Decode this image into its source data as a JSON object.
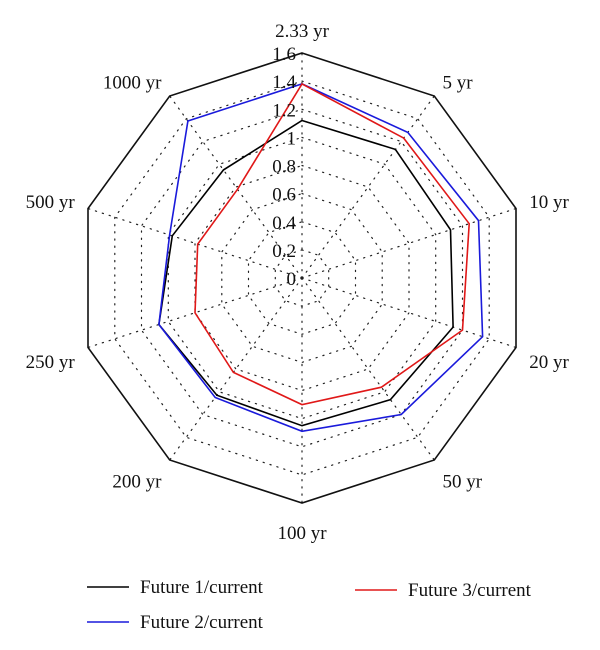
{
  "chart_data": {
    "type": "radar",
    "categories": [
      "2.33 yr",
      "5 yr",
      "10 yr",
      "20 yr",
      "50 yr",
      "100 yr",
      "200 yr",
      "250 yr",
      "500 yr",
      "1000 yr"
    ],
    "rlim": [
      0,
      1.6
    ],
    "ticks": [
      "0",
      "0.2",
      "0.4",
      "0.6",
      "0.8",
      "1",
      "1.2",
      "1.4",
      "1.6"
    ],
    "grid": true,
    "legend_position": "bottom",
    "series": [
      {
        "name": "Future 1/current",
        "color": "#000000",
        "values": [
          1.12,
          1.13,
          1.11,
          1.13,
          1.07,
          1.05,
          1.03,
          1.07,
          0.97,
          0.95
        ]
      },
      {
        "name": "Future 2/current",
        "color": "#1a1adb",
        "values": [
          1.38,
          1.28,
          1.32,
          1.35,
          1.2,
          1.09,
          1.05,
          1.07,
          0.99,
          1.38
        ]
      },
      {
        "name": "Future 3/current",
        "color": "#e01818",
        "values": [
          1.38,
          1.23,
          1.25,
          1.2,
          0.96,
          0.9,
          0.83,
          0.8,
          0.78,
          0.78
        ]
      }
    ]
  }
}
